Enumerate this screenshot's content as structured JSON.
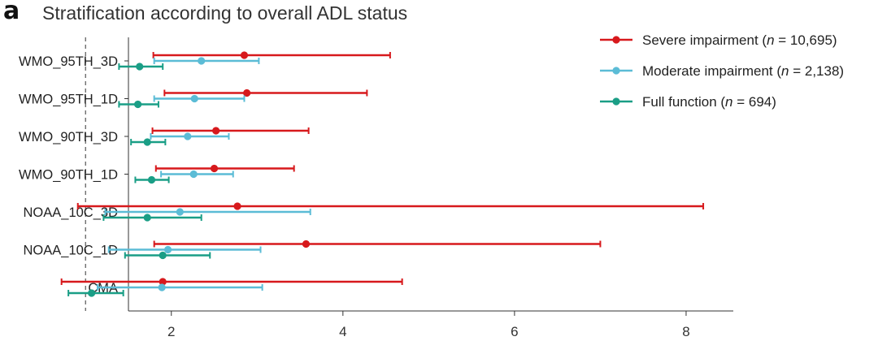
{
  "panel_label": "a",
  "chart_data": {
    "type": "forest",
    "title": "Stratification according to overall ADL status",
    "xlabel": "",
    "ylabel": "",
    "xlim": [
      1.5,
      8.55
    ],
    "xticks": [
      2,
      4,
      6,
      8
    ],
    "reference_line": 1,
    "grid": false,
    "legend_position": "top-right",
    "categories": [
      "WMO_95TH_3D",
      "WMO_95TH_1D",
      "WMO_90TH_3D",
      "WMO_90TH_1D",
      "NOAA_10C_3D",
      "NOAA_10C_1D",
      "CMA"
    ],
    "series": [
      {
        "name": "Severe impairment",
        "n": "10,695",
        "color": "#d7191c",
        "estimate": [
          2.85,
          2.88,
          2.52,
          2.5,
          2.77,
          3.57,
          1.9
        ],
        "lower": [
          1.79,
          1.92,
          1.78,
          1.82,
          0.91,
          1.8,
          0.72
        ],
        "upper": [
          4.55,
          4.28,
          3.6,
          3.43,
          8.2,
          7.0,
          4.69
        ]
      },
      {
        "name": "Moderate impairment",
        "n": "2,138",
        "color": "#5bbcd6",
        "estimate": [
          2.35,
          2.27,
          2.19,
          2.26,
          2.1,
          1.96,
          1.89
        ],
        "lower": [
          1.8,
          1.8,
          1.76,
          1.88,
          1.23,
          1.27,
          1.14
        ],
        "upper": [
          3.02,
          2.85,
          2.67,
          2.72,
          3.62,
          3.04,
          3.06
        ]
      },
      {
        "name": "Full function",
        "n": "694",
        "color": "#1a9e86",
        "estimate": [
          1.63,
          1.61,
          1.72,
          1.77,
          1.72,
          1.9,
          1.07
        ],
        "lower": [
          1.39,
          1.39,
          1.53,
          1.58,
          1.21,
          1.46,
          0.8
        ],
        "upper": [
          1.9,
          1.85,
          1.93,
          1.97,
          2.35,
          2.45,
          1.44
        ]
      }
    ]
  }
}
